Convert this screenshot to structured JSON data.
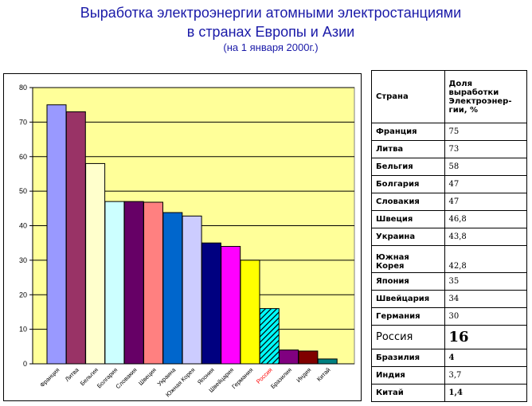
{
  "title": {
    "line1": "Выработка электроэнергии атомными электростанциями",
    "line2": "в странах Европы и Азии",
    "line3": "(на 1 января 2000г.)"
  },
  "table": {
    "header_country": "Страна",
    "header_share": "Доля выработки Электроэнер-гии, %",
    "rows": [
      {
        "country": "Франция",
        "value": "75"
      },
      {
        "country": "Литва",
        "value": "73"
      },
      {
        "country": "Бельгия",
        "value": "58"
      },
      {
        "country": "Болгария",
        "value": "47"
      },
      {
        "country": "Словакия",
        "value": "47"
      },
      {
        "country": "Швеция",
        "value": "46,8"
      },
      {
        "country": "Украина",
        "value": "43,8"
      },
      {
        "country": "Южная Корея",
        "value": "42,8"
      },
      {
        "country": "Япония",
        "value": "35"
      },
      {
        "country": "Швейцария",
        "value": "34"
      },
      {
        "country": "Германия",
        "value": "30"
      },
      {
        "country": "Россия",
        "value": "16"
      },
      {
        "country": "Бразилия",
        "value": "4"
      },
      {
        "country": "Индия",
        "value": "3,7"
      },
      {
        "country": "Китай",
        "value": "1,4"
      }
    ]
  },
  "chart_data": {
    "type": "bar",
    "categories": [
      "Франция",
      "Литва",
      "Бельгия",
      "Болгария",
      "Словакия",
      "Швеция",
      "Украина",
      "Южная Корея",
      "Япония",
      "Швейцария",
      "Германия",
      "Россия",
      "Бразилия",
      "Индия",
      "Китай"
    ],
    "values": [
      75,
      73,
      58,
      47,
      47,
      46.8,
      43.8,
      42.8,
      35,
      34,
      30,
      16,
      4,
      3.7,
      1.4
    ],
    "bar_colors": [
      "#9999ff",
      "#993366",
      "#ffffcc",
      "#ccffff",
      "#660066",
      "#ff8080",
      "#0066cc",
      "#ccccff",
      "#000080",
      "#ff00ff",
      "#ffff00",
      "#00ffff",
      "#800080",
      "#800000",
      "#008080"
    ],
    "highlight_category": "Россия",
    "highlight_color": "#ff0000",
    "plot_background": "#ffff99",
    "yticks": [
      0,
      10,
      20,
      30,
      40,
      50,
      60,
      70,
      80
    ],
    "ylim": [
      0,
      80
    ],
    "grid": true,
    "legend": "none"
  }
}
